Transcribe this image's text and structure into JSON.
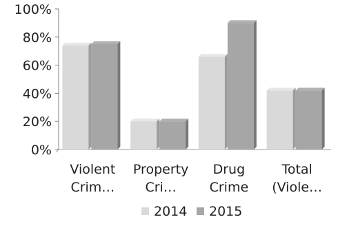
{
  "chart_data": {
    "type": "bar",
    "title": "",
    "xlabel": "",
    "ylabel": "",
    "categories": [
      [
        "Violent",
        "Crim…"
      ],
      [
        "Property",
        "Cri…"
      ],
      [
        "Drug",
        "Crime"
      ],
      [
        "Total",
        "(Viole…"
      ]
    ],
    "series": [
      {
        "name": "2014",
        "values": [
          74,
          20,
          66,
          42
        ],
        "color": "#d9d9d9"
      },
      {
        "name": "2015",
        "values": [
          75,
          20,
          90,
          42
        ],
        "color": "#a6a6a6"
      }
    ],
    "ylim": [
      0,
      100
    ],
    "yticks": [
      0,
      20,
      40,
      60,
      80,
      100
    ],
    "ytick_labels": [
      "0%",
      "20%",
      "40%",
      "60%",
      "80%",
      "100%"
    ],
    "grid": false,
    "legend_position": "bottom",
    "style": "3d-bar"
  }
}
